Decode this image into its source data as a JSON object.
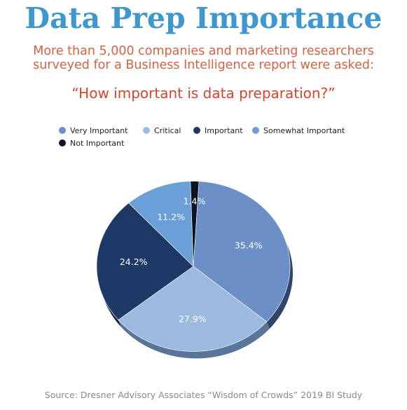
{
  "header": {
    "title": "Data Prep Importance",
    "subtitle_line1": "More than 5,000 companies and marketing researchers",
    "subtitle_line2": "surveyed for a Business Intelligence report were asked:",
    "question": "“How important is data preparation?”"
  },
  "footer": {
    "source": "Source: Dresner Advisory Associates “Wisdom of Crowds” 2019 BI Study"
  },
  "colors": {
    "title": "#3f97cf",
    "subtitle": "#d86241",
    "question": "#d6452b"
  },
  "chart_data": {
    "type": "pie",
    "style": "3d-tilted",
    "legend_position": "top",
    "categories": [
      "Very Important",
      "Critical",
      "Important",
      "Somewhat Important",
      "Not Important"
    ],
    "values": [
      35.4,
      27.9,
      24.2,
      11.2,
      1.4
    ],
    "labels": [
      "35.4%",
      "27.9%",
      "24.2%",
      "11.2%",
      "1.4%"
    ],
    "colors": [
      "#6d8fc7",
      "#9cb9df",
      "#1f3966",
      "#6a9fd8",
      "#0c1424"
    ],
    "side_colors": [
      "#2f4668",
      "#5b7499",
      "#122440",
      "#355b84",
      "#050a12"
    ]
  }
}
